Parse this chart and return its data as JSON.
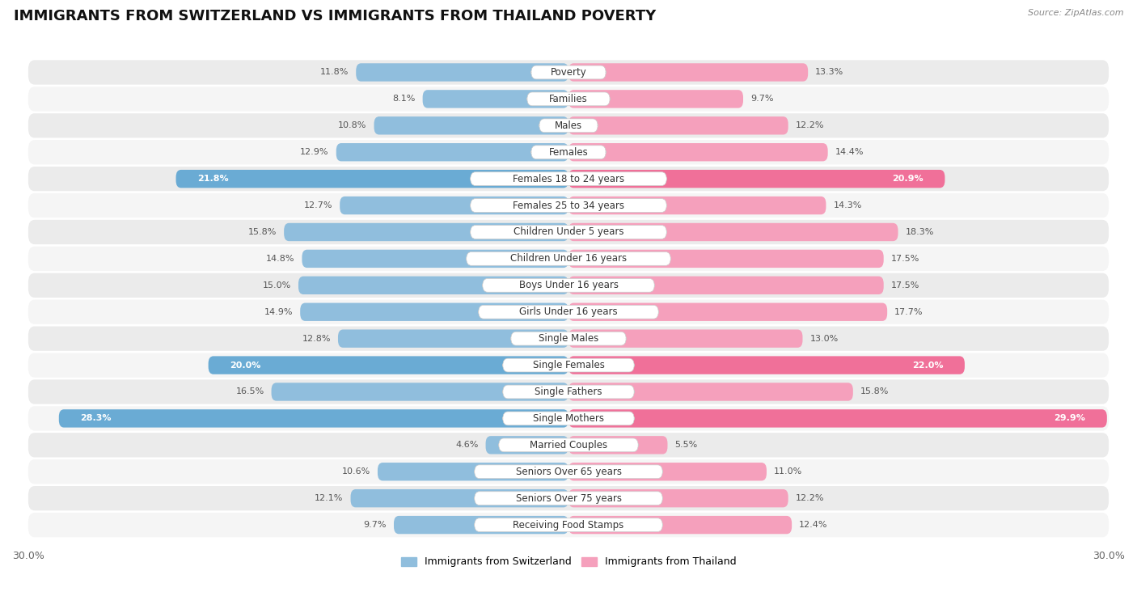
{
  "title": "IMMIGRANTS FROM SWITZERLAND VS IMMIGRANTS FROM THAILAND POVERTY",
  "source": "Source: ZipAtlas.com",
  "categories": [
    "Poverty",
    "Families",
    "Males",
    "Females",
    "Females 18 to 24 years",
    "Females 25 to 34 years",
    "Children Under 5 years",
    "Children Under 16 years",
    "Boys Under 16 years",
    "Girls Under 16 years",
    "Single Males",
    "Single Females",
    "Single Fathers",
    "Single Mothers",
    "Married Couples",
    "Seniors Over 65 years",
    "Seniors Over 75 years",
    "Receiving Food Stamps"
  ],
  "switzerland_values": [
    11.8,
    8.1,
    10.8,
    12.9,
    21.8,
    12.7,
    15.8,
    14.8,
    15.0,
    14.9,
    12.8,
    20.0,
    16.5,
    28.3,
    4.6,
    10.6,
    12.1,
    9.7
  ],
  "thailand_values": [
    13.3,
    9.7,
    12.2,
    14.4,
    20.9,
    14.3,
    18.3,
    17.5,
    17.5,
    17.7,
    13.0,
    22.0,
    15.8,
    29.9,
    5.5,
    11.0,
    12.2,
    12.4
  ],
  "switzerland_color": "#90bedd",
  "thailand_color": "#f5a0bc",
  "switzerland_highlight_color": "#6aabd4",
  "thailand_highlight_color": "#f07099",
  "highlight_rows": [
    4,
    11,
    13
  ],
  "background_color": "#ffffff",
  "row_bg_color": "#e8e8e8",
  "row_stripe_color": "#f0f0f0",
  "axis_limit": 30.0,
  "legend_label_switzerland": "Immigrants from Switzerland",
  "legend_label_thailand": "Immigrants from Thailand",
  "title_fontsize": 13,
  "label_fontsize": 8.5,
  "value_fontsize": 8.0
}
